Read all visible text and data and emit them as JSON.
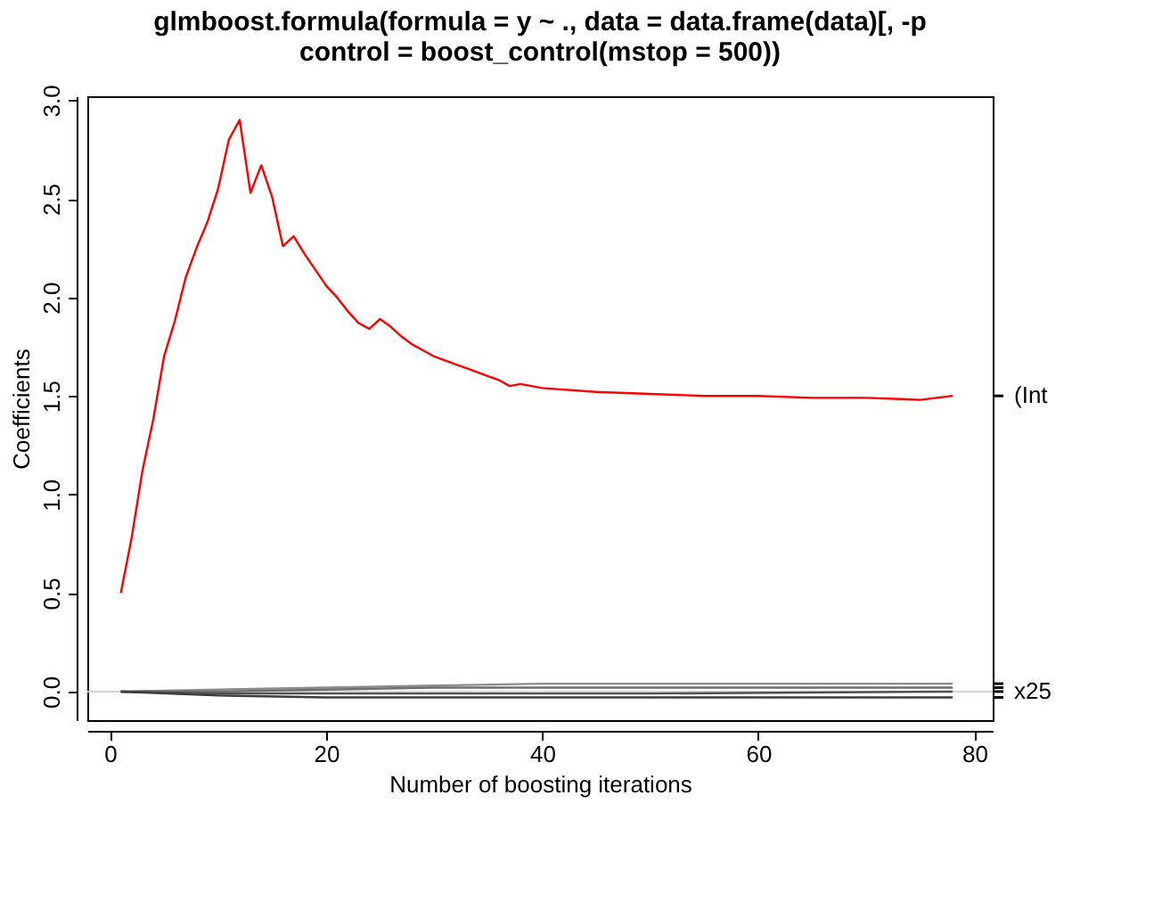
{
  "chart_data": {
    "type": "line",
    "title": [
      "glmboost.formula(formula = y ~ ., data = data.frame(data)[, -p",
      "control = boost_control(mstop = 500))"
    ],
    "xlabel": "Number of boosting iterations",
    "ylabel": "Coefficients",
    "xlim": [
      -2.1,
      81.7
    ],
    "xticks": [
      0,
      20,
      40,
      60,
      80
    ],
    "ylim": [
      -0.145,
      3.02
    ],
    "yticks": [
      {
        "value": 0,
        "label": "0.0"
      },
      0.5,
      {
        "value": 1,
        "label": "1.0"
      },
      1.5,
      {
        "value": 2,
        "label": "2.0"
      },
      2.5,
      {
        "value": 3,
        "label": "3.0"
      }
    ],
    "grid": false,
    "legend": false,
    "line_style": "solid",
    "marker": "none",
    "ref_lines": [
      {
        "axis": "y",
        "value": 0,
        "color": "#d3d3d3"
      }
    ],
    "series": [
      {
        "name": "(Int",
        "color": "#ff0000",
        "x": [
          1,
          2,
          3,
          4,
          5,
          6,
          7,
          8,
          9,
          10,
          11,
          12,
          13,
          14,
          15,
          16,
          17,
          18,
          19,
          20,
          21,
          22,
          23,
          24,
          25,
          26,
          27,
          28,
          29,
          30,
          31,
          32,
          33,
          34,
          35,
          36,
          37,
          38,
          39,
          40,
          45,
          50,
          55,
          60,
          65,
          70,
          75,
          78
        ],
        "values": [
          0.5,
          0.78,
          1.12,
          1.38,
          1.7,
          1.88,
          2.1,
          2.25,
          2.38,
          2.55,
          2.8,
          2.9,
          2.53,
          2.67,
          2.51,
          2.26,
          2.31,
          2.22,
          2.14,
          2.06,
          2.0,
          1.93,
          1.87,
          1.84,
          1.89,
          1.85,
          1.8,
          1.76,
          1.73,
          1.7,
          1.68,
          1.66,
          1.64,
          1.62,
          1.6,
          1.58,
          1.55,
          1.56,
          1.55,
          1.54,
          1.52,
          1.51,
          1.5,
          1.5,
          1.49,
          1.49,
          1.48,
          1.5
        ]
      },
      {
        "color": "#8c8c8c",
        "x": [
          1,
          10,
          20,
          30,
          40,
          50,
          78
        ],
        "values": [
          0,
          0.01,
          0.02,
          0.03,
          0.04,
          0.04,
          0.04
        ]
      },
      {
        "color": "#6e6e6e",
        "x": [
          1,
          10,
          20,
          30,
          40,
          50,
          78
        ],
        "values": [
          0,
          0.0,
          0.01,
          0.02,
          0.02,
          0.02,
          0.02
        ]
      },
      {
        "name": "x25",
        "color": "#505050",
        "x": [
          1,
          10,
          20,
          30,
          40,
          50,
          78
        ],
        "values": [
          0,
          -0.01,
          -0.01,
          -0.01,
          -0.01,
          -0.01,
          0
        ]
      },
      {
        "color": "#3c3c3c",
        "x": [
          1,
          10,
          20,
          30,
          40,
          50,
          78
        ],
        "values": [
          0,
          -0.02,
          -0.03,
          -0.03,
          -0.03,
          -0.03,
          -0.03
        ]
      }
    ]
  }
}
